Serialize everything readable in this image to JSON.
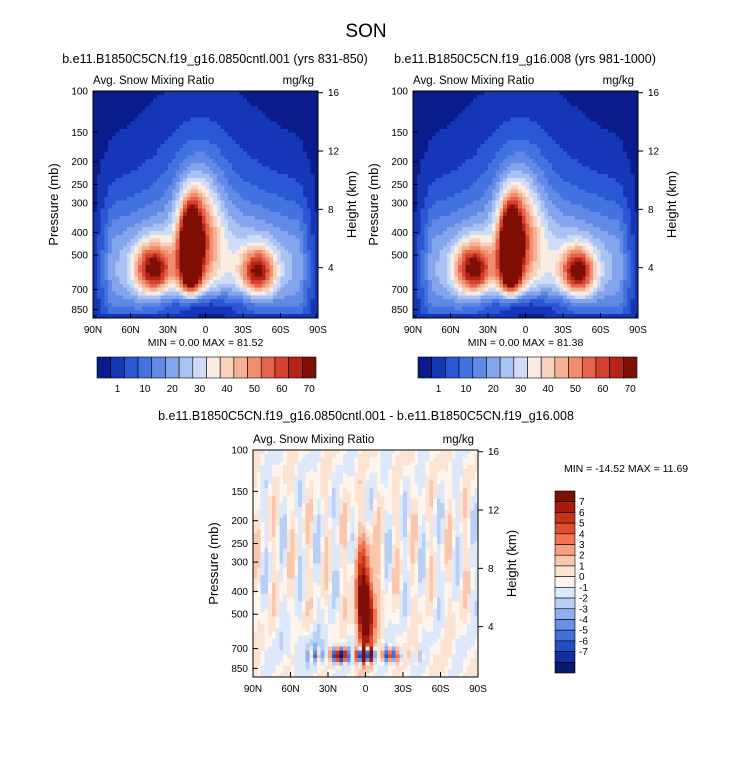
{
  "figure": {
    "title": "SON"
  },
  "chart_data": [
    {
      "type": "heatmap",
      "id": "case1",
      "title": "b.e11.B1850C5CN.f19_g16.0850cntl.001 (yrs 831-850)",
      "left_label": "Avg. Snow Mixing Ratio",
      "right_label": "mg/kg",
      "xlabel": "",
      "ylabel": "Pressure (mb)",
      "y2label": "Height (km)",
      "x_ticks": [
        "90N",
        "60N",
        "30N",
        "0",
        "30S",
        "60S",
        "90S"
      ],
      "x_range": [
        90,
        -90
      ],
      "pressure_ticks": [
        100,
        150,
        200,
        250,
        300,
        400,
        500,
        700,
        850
      ],
      "height_ticks": [
        16,
        12,
        8,
        4
      ],
      "ylim": [
        100,
        925
      ],
      "stats": "MIN =   0.00  MAX = 81.52",
      "colorbar_labels": [
        "1",
        "10",
        "20",
        "30",
        "40",
        "50",
        "60",
        "70"
      ],
      "colors": [
        "#0a1c8c",
        "#1537b7",
        "#2b57d4",
        "#4373e0",
        "#6189e6",
        "#84a5ec",
        "#a9c2f2",
        "#cfdcf7",
        "#f9ece2",
        "#f8d2bd",
        "#f5b193",
        "#f18f6c",
        "#e8634b",
        "#d6402f",
        "#b52414",
        "#7d0f05"
      ]
    },
    {
      "type": "heatmap",
      "id": "case2",
      "title": "b.e11.B1850C5CN.f19_g16.008 (yrs 981-1000)",
      "left_label": "Avg. Snow Mixing Ratio",
      "right_label": "mg/kg",
      "xlabel": "",
      "ylabel": "Pressure (mb)",
      "y2label": "Height (km)",
      "x_ticks": [
        "90N",
        "60N",
        "30N",
        "0",
        "30S",
        "60S",
        "90S"
      ],
      "x_range": [
        90,
        -90
      ],
      "pressure_ticks": [
        100,
        150,
        200,
        250,
        300,
        400,
        500,
        700,
        850
      ],
      "height_ticks": [
        16,
        12,
        8,
        4
      ],
      "ylim": [
        100,
        925
      ],
      "stats": "MIN =   0.00  MAX = 81.38",
      "colorbar_labels": [
        "1",
        "10",
        "20",
        "30",
        "40",
        "50",
        "60",
        "70"
      ],
      "colors": [
        "#0a1c8c",
        "#1537b7",
        "#2b57d4",
        "#4373e0",
        "#6189e6",
        "#84a5ec",
        "#a9c2f2",
        "#cfdcf7",
        "#f9ece2",
        "#f8d2bd",
        "#f5b193",
        "#f18f6c",
        "#e8634b",
        "#d6402f",
        "#b52414",
        "#7d0f05"
      ]
    },
    {
      "type": "heatmap",
      "id": "diff",
      "title": "b.e11.B1850C5CN.f19_g16.0850cntl.001 - b.e11.B1850C5CN.f19_g16.008",
      "left_label": "Avg. Snow Mixing Ratio",
      "right_label": "mg/kg",
      "xlabel": "",
      "ylabel": "Pressure (mb)",
      "y2label": "Height (km)",
      "x_ticks": [
        "90N",
        "60N",
        "30N",
        "0",
        "30S",
        "60S",
        "90S"
      ],
      "x_range": [
        90,
        -90
      ],
      "pressure_ticks": [
        100,
        150,
        200,
        250,
        300,
        400,
        500,
        700,
        850
      ],
      "height_ticks": [
        16,
        12,
        8,
        4
      ],
      "ylim": [
        100,
        925
      ],
      "stats": "MIN = -14.52  MAX = 11.69",
      "colorbar_labels": [
        "7",
        "6",
        "5",
        "4",
        "3",
        "2",
        "1",
        "0",
        "-1",
        "-2",
        "-3",
        "-4",
        "-5",
        "-6",
        "-7"
      ],
      "colors": [
        "#7d0f05",
        "#a51e0d",
        "#c83218",
        "#e14d2e",
        "#ef7552",
        "#f6a07e",
        "#f9c7ad",
        "#fbe4d4",
        "#fff5ec",
        "#dde9fa",
        "#b8d0f5",
        "#8fb0ee",
        "#6a90e6",
        "#4170dc",
        "#2150c4",
        "#0f2f9a",
        "#061a6e"
      ]
    }
  ]
}
